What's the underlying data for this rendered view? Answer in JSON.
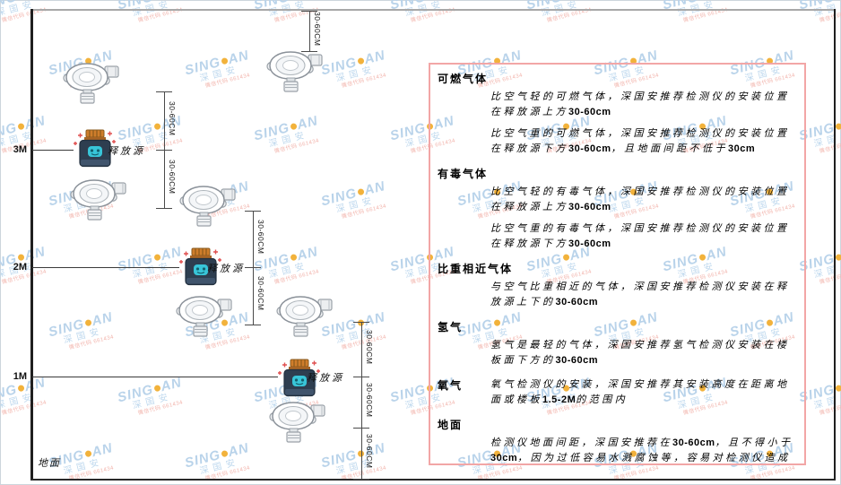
{
  "watermark": {
    "brand_prefix": "SING",
    "brand_suffix": "AN",
    "brand_sub": "深国安",
    "tagline": "微信代码 661434",
    "logo_color": "#b9d3ea",
    "dot_color": "#f2b23b",
    "tagline_color": "#f2b3ab"
  },
  "room": {
    "ceiling_color": "#a8a8a8",
    "wall_color": "#1f1f1f",
    "floor_color": "#2a2a2a"
  },
  "diagram": {
    "dim_label": "30-60CM",
    "ground_label": "地面",
    "source_label": "释放源",
    "levels": [
      {
        "label": "3M"
      },
      {
        "label": "2M"
      },
      {
        "label": "1M"
      }
    ]
  },
  "panel": {
    "border_color": "#f2a6a6",
    "sections": [
      {
        "heading": "可燃气体",
        "inline": false,
        "paragraphs": [
          "比空气轻的可燃气体，深国安推荐检测仪的安装位置在释放源上方30-60cm",
          "比空气重的可燃气体，深国安推荐检测仪的安装位置在释放源下方30-60cm，且地面间距不低于30cm"
        ]
      },
      {
        "heading": "有毒气体",
        "inline": false,
        "paragraphs": [
          "比空气轻的有毒气体，深国安推荐检测仪的安装位置在释放源上方30-60cm",
          "比空气重的有毒气体，深国安推荐检测仪的安装位置在释放源下方30-60cm"
        ]
      },
      {
        "heading": "比重相近气体",
        "inline": false,
        "paragraphs": [
          "与空气比重相近的气体，深国安推荐检测仪安装在释放源上下的30-60cm"
        ]
      },
      {
        "heading": "氢气",
        "inline": false,
        "paragraphs": [
          "氢气是最轻的气体，深国安推荐氢气检测仪安装在楼板面下方的30-60cm"
        ]
      },
      {
        "heading": "氧气",
        "inline": true,
        "paragraphs": [
          "氧气检测仪的安装，深国安推荐其安装高度在距离地面或楼板1.5-2M的范围内"
        ]
      },
      {
        "heading": "地面",
        "inline": false,
        "paragraphs": [
          "检测仪地面间距，深国安推荐在30-60cm，且不得小于30cm，因为过低容易水溅腐蚀等，容易对检测仪造成伤害"
        ]
      }
    ]
  }
}
